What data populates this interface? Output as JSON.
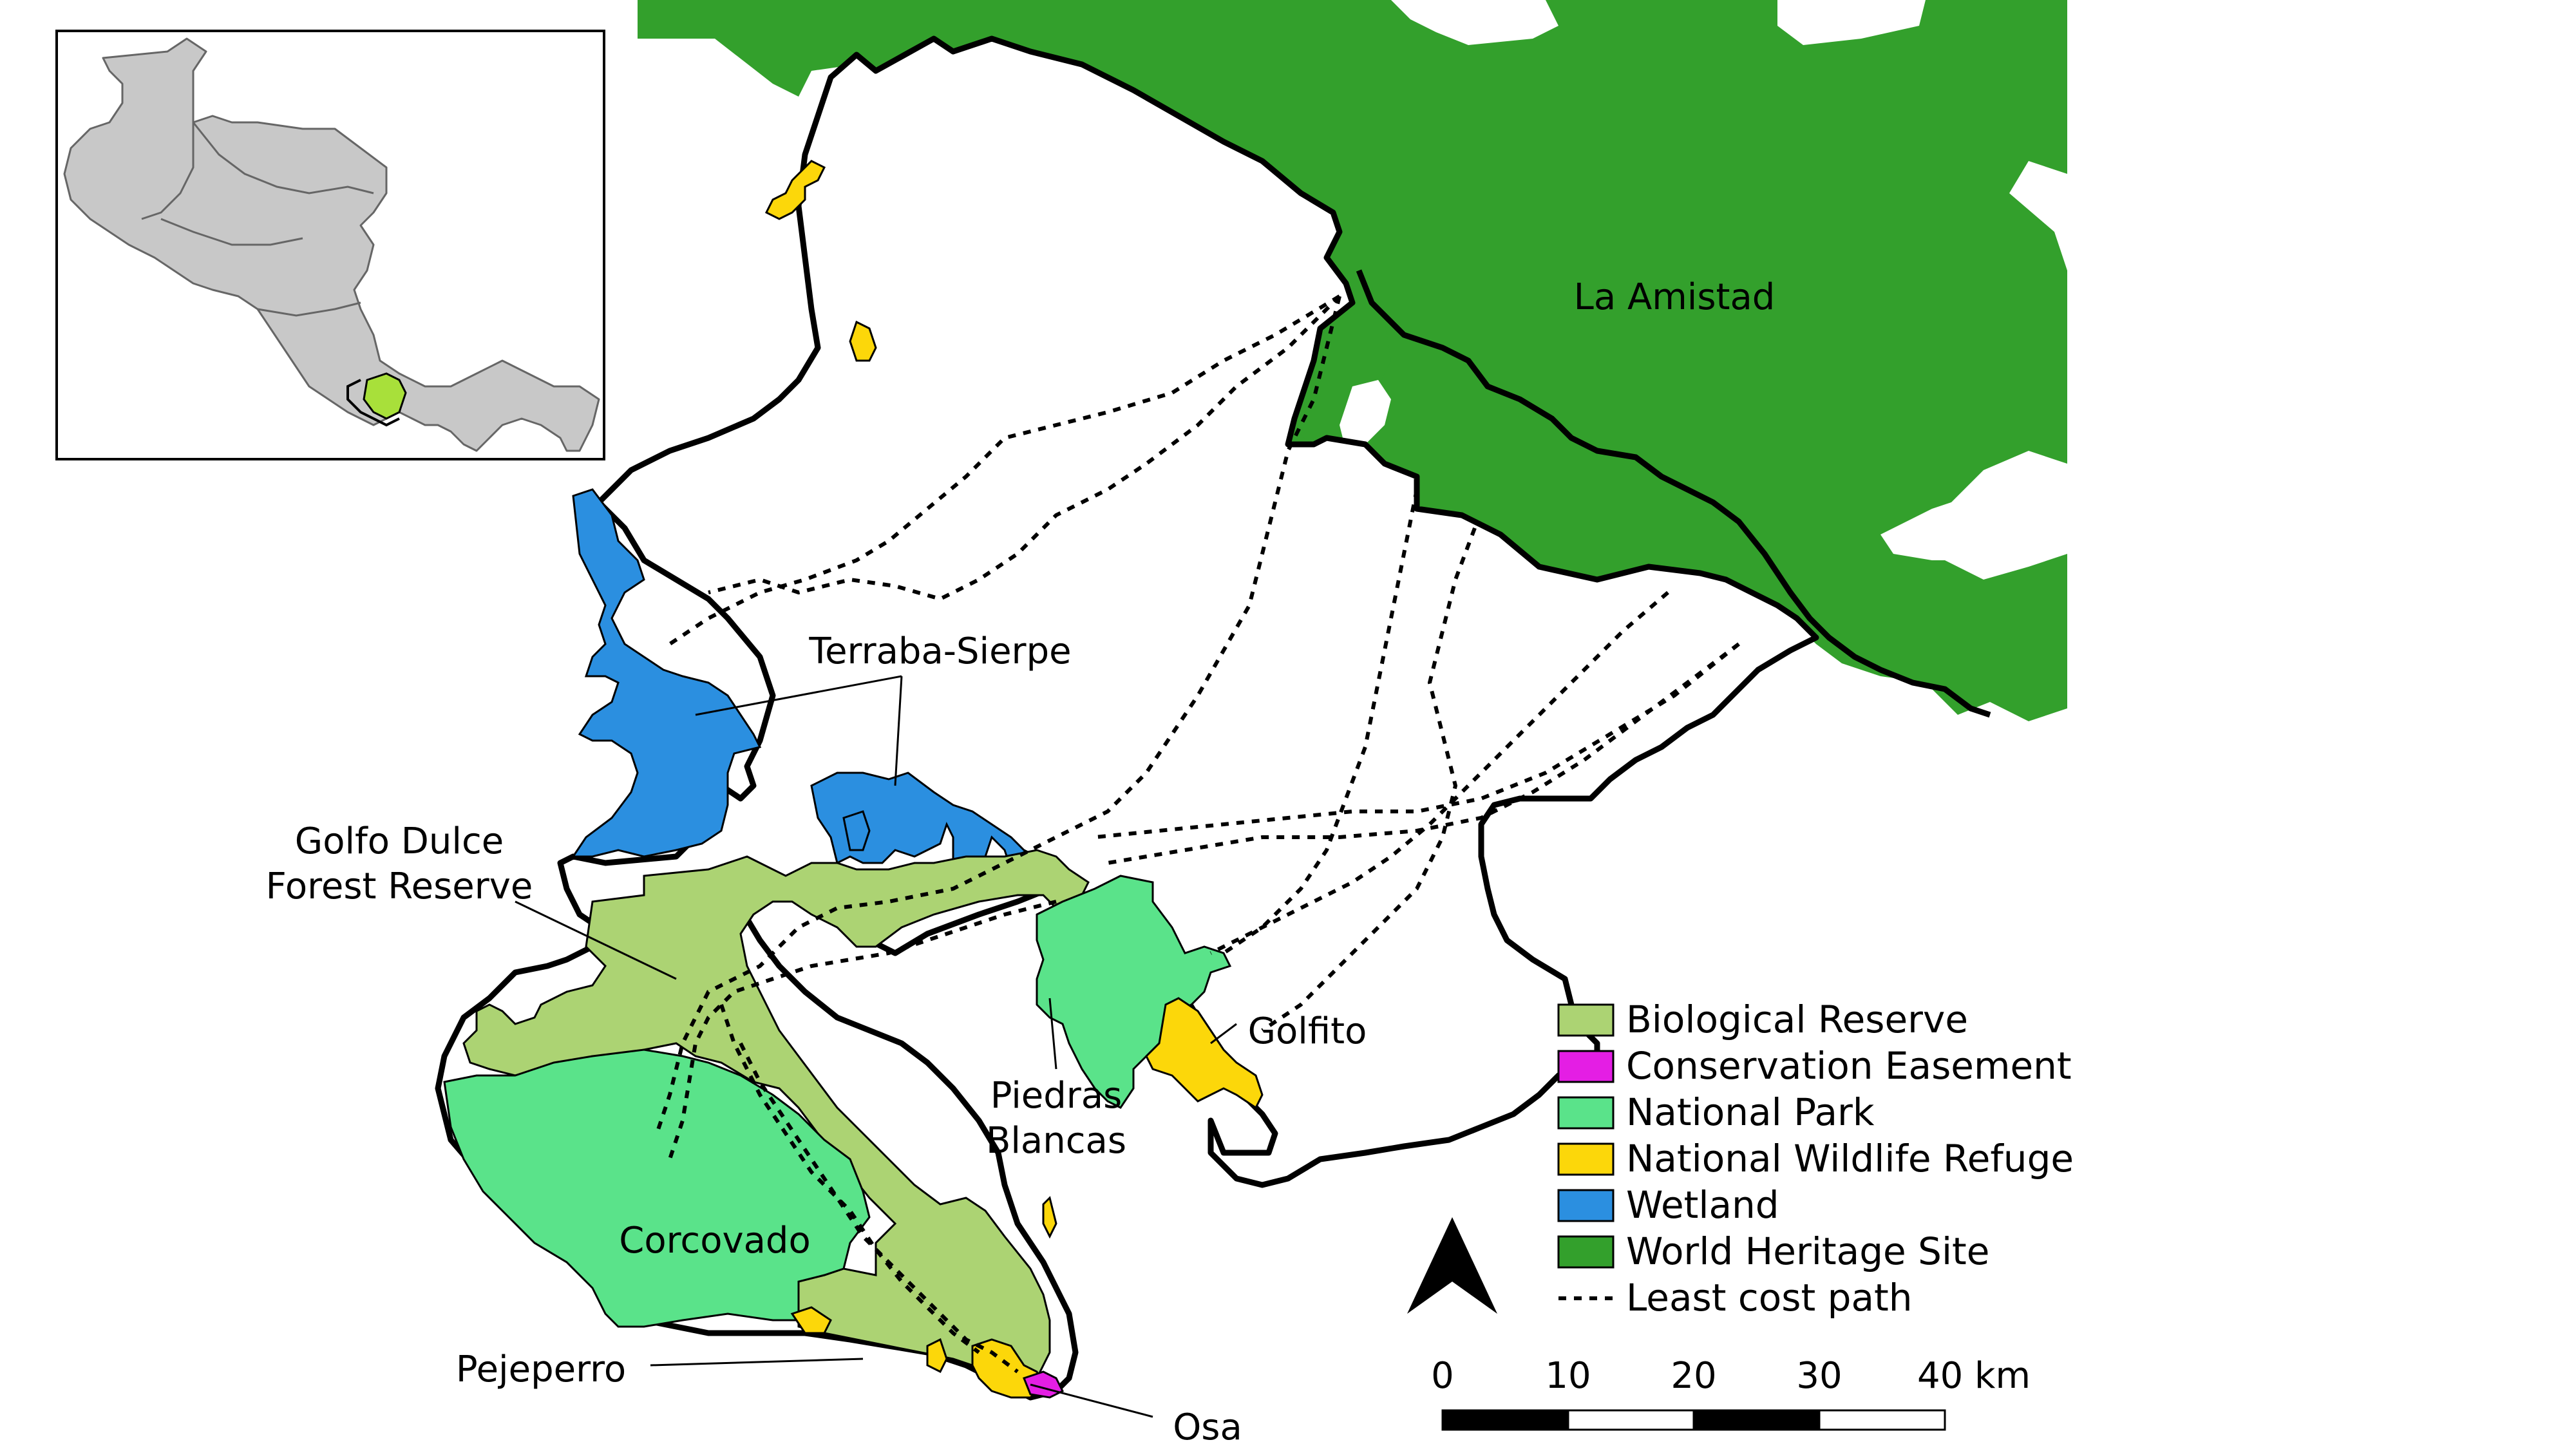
{
  "colors": {
    "biological_reserve": "#acd373",
    "conservation_easement": "#e41ee4",
    "national_park": "#5ae38a",
    "national_wildlife_refuge": "#fcd70a",
    "wetland": "#2b8fe0",
    "world_heritage_site": "#33a02c",
    "land_gray": "#c8c8c8",
    "study_area_highlight": "#a8e03a"
  },
  "labels": {
    "la_amistad": "La Amistad",
    "terraba_sierpe": "Terraba-Sierpe",
    "golfo_dulce_line1": "Golfo Dulce",
    "golfo_dulce_line2": "Forest Reserve",
    "golfito": "Golfito",
    "piedras_line1": "Piedras",
    "piedras_line2": "Blancas",
    "corcovado": "Corcovado",
    "pejeperro": "Pejeperro",
    "osa": "Osa"
  },
  "legend": {
    "items": [
      {
        "label": "Biological Reserve",
        "swatch": "biological_reserve"
      },
      {
        "label": "Conservation Easement",
        "swatch": "conservation_easement"
      },
      {
        "label": "National Park",
        "swatch": "national_park"
      },
      {
        "label": "National Wildlife Refuge",
        "swatch": "national_wildlife_refuge"
      },
      {
        "label": "Wetland",
        "swatch": "wetland"
      },
      {
        "label": "World Heritage Site",
        "swatch": "world_heritage_site"
      },
      {
        "label": "Least cost path",
        "swatch": "line"
      }
    ]
  },
  "north_arrow": {
    "icon": "north-arrow-icon"
  },
  "scale_bar": {
    "ticks": [
      "0",
      "10",
      "20",
      "30",
      "40 km"
    ]
  }
}
